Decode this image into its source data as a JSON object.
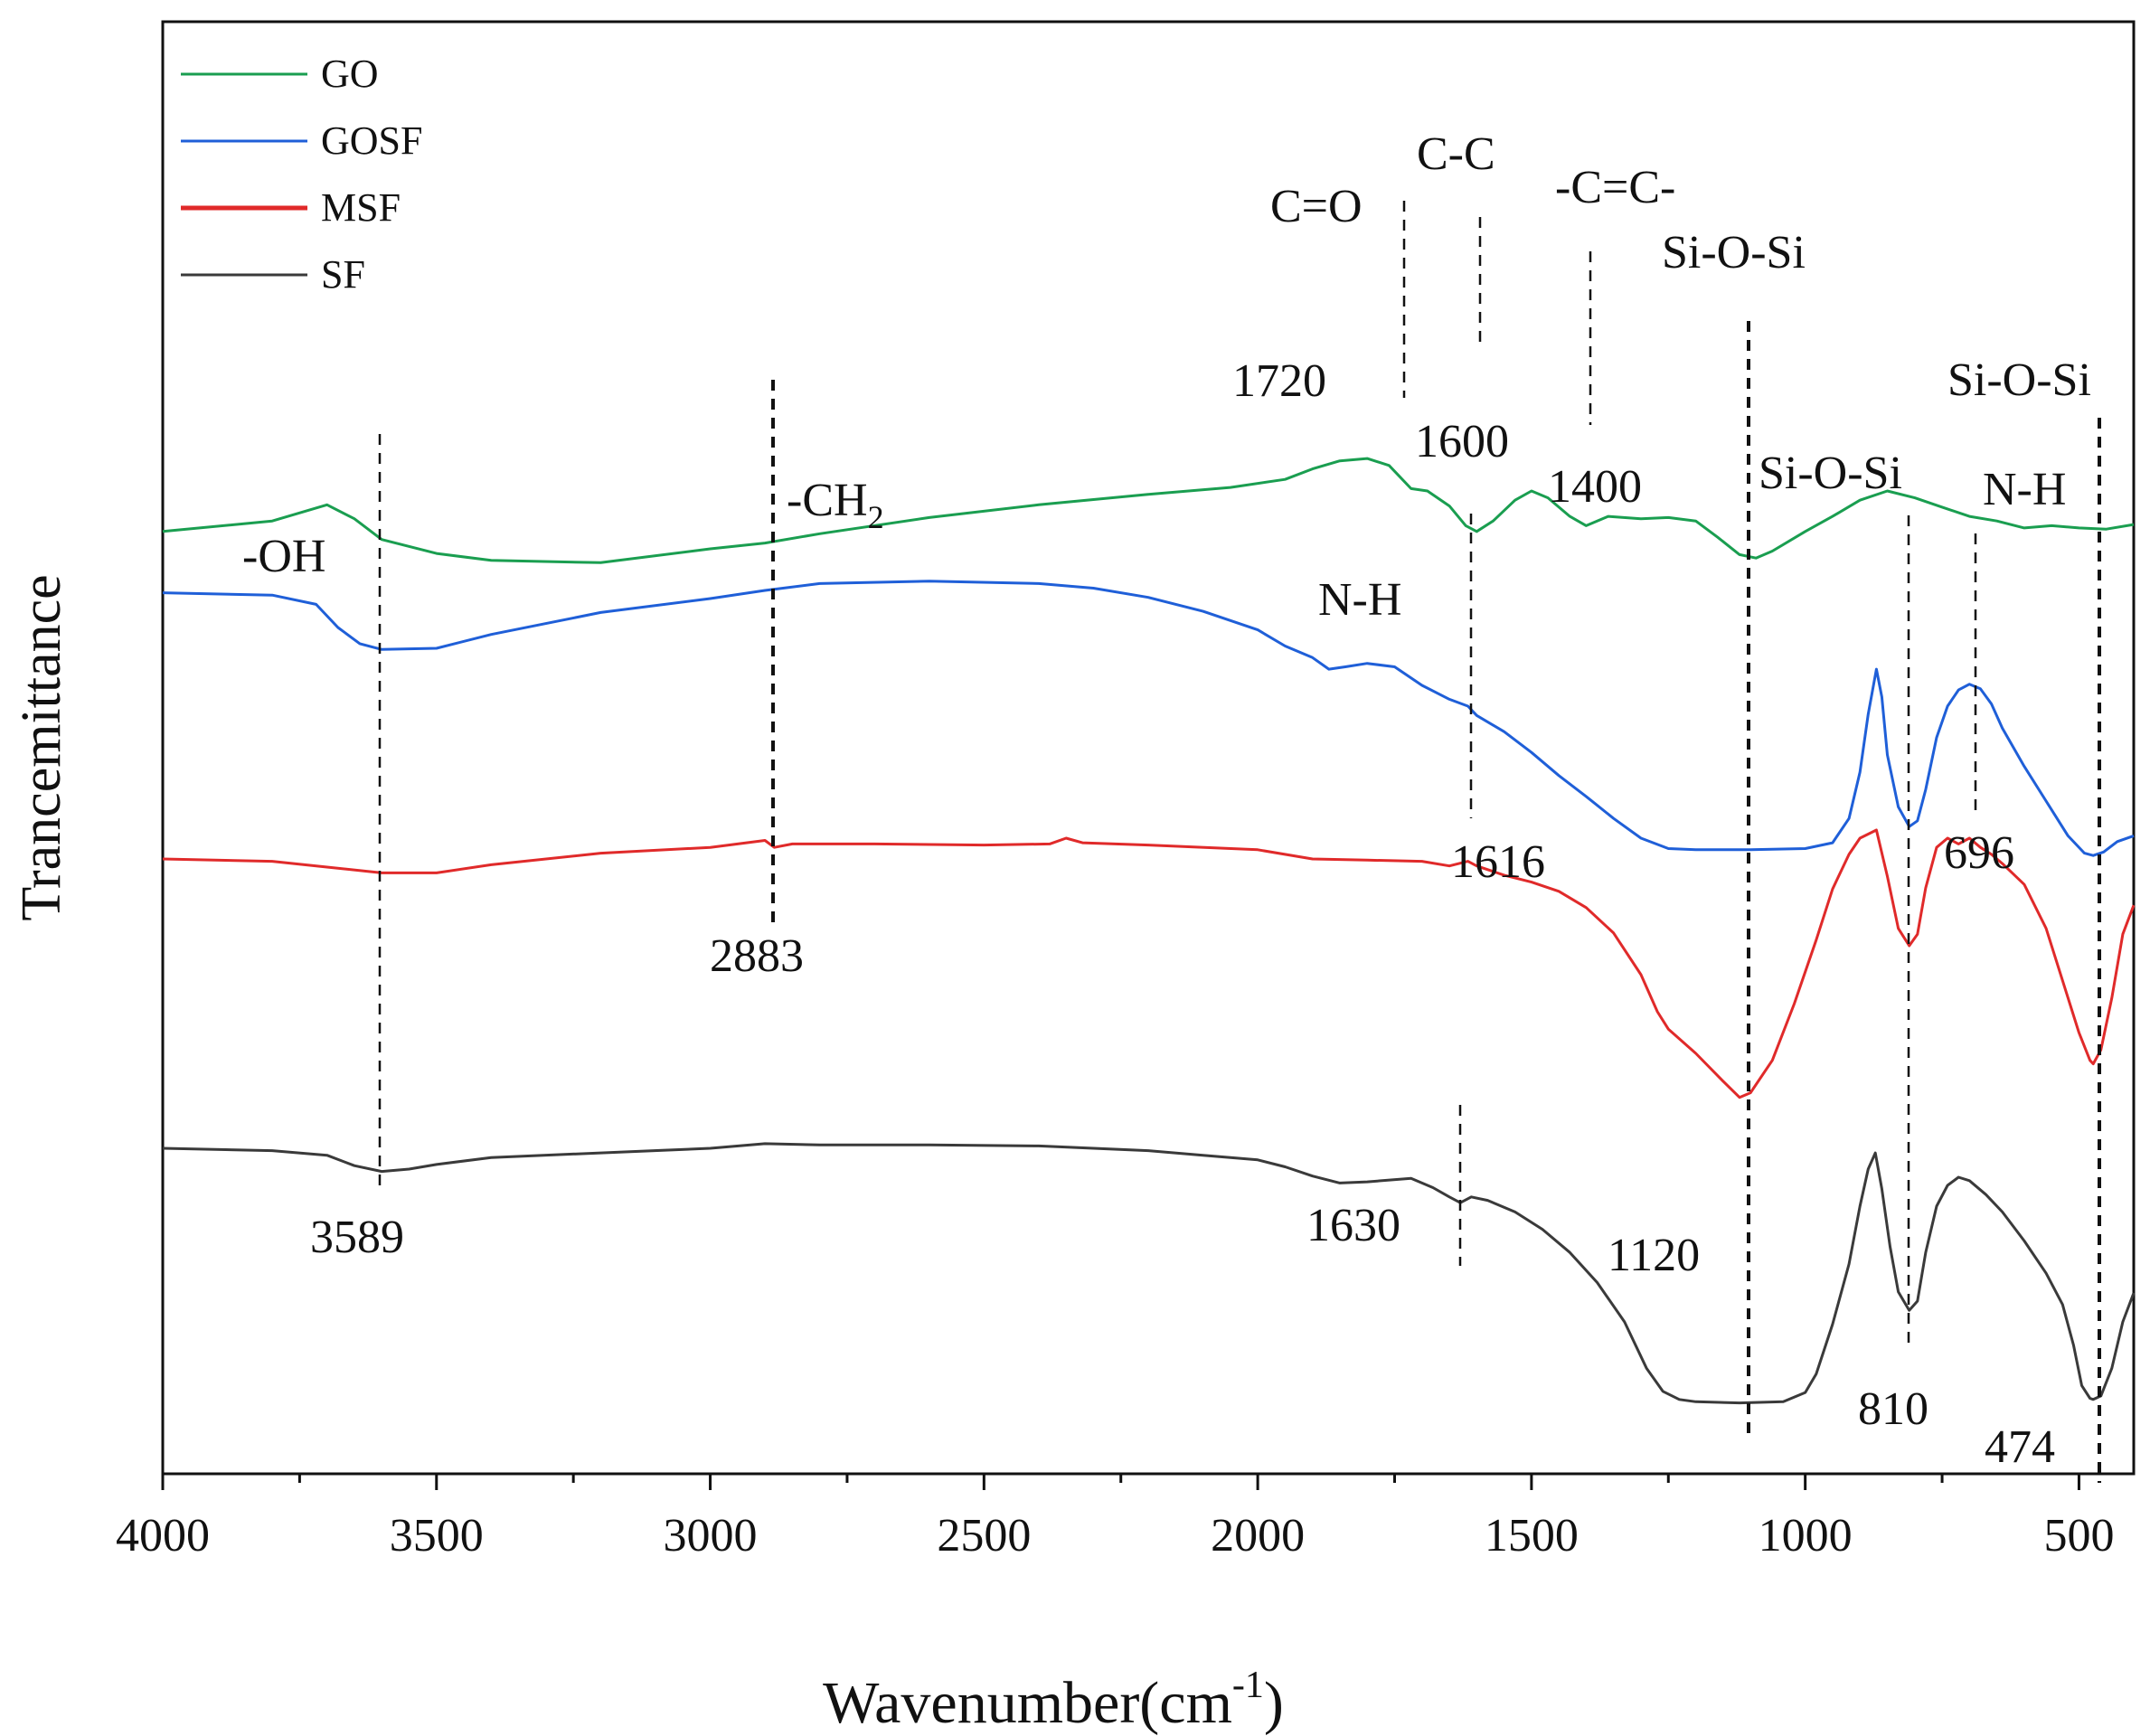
{
  "chart_data": {
    "type": "line",
    "title": "",
    "xlabel": "Wavenumber(cm",
    "xlabel_sup": "-1",
    "xlabel_close": ")",
    "ylabel": "Trancemittance",
    "xlim": [
      4000,
      400
    ],
    "x_ticks": [
      4000,
      3500,
      3000,
      2500,
      2000,
      1500,
      1000,
      500
    ],
    "x_tick_labels": [
      "4000",
      "3500",
      "3000",
      "2500",
      "2000",
      "1500",
      "1000",
      "500"
    ],
    "y_ticks_shown": false,
    "y_range": [
      0,
      100
    ],
    "legend_position": "top-left",
    "series": [
      {
        "name": "GO",
        "color": "#1a9e50",
        "points": [
          [
            4000,
            78.3
          ],
          [
            3800,
            79.2
          ],
          [
            3700,
            80.6
          ],
          [
            3650,
            79.4
          ],
          [
            3600,
            77.6
          ],
          [
            3500,
            76.4
          ],
          [
            3400,
            75.8
          ],
          [
            3200,
            75.6
          ],
          [
            3000,
            76.8
          ],
          [
            2900,
            77.3
          ],
          [
            2800,
            78.1
          ],
          [
            2600,
            79.5
          ],
          [
            2400,
            80.6
          ],
          [
            2200,
            81.5
          ],
          [
            2050,
            82.1
          ],
          [
            1950,
            82.8
          ],
          [
            1900,
            83.7
          ],
          [
            1850,
            84.4
          ],
          [
            1800,
            84.6
          ],
          [
            1760,
            84.0
          ],
          [
            1720,
            82.0
          ],
          [
            1690,
            81.8
          ],
          [
            1650,
            80.5
          ],
          [
            1620,
            78.8
          ],
          [
            1600,
            78.3
          ],
          [
            1570,
            79.2
          ],
          [
            1530,
            81.0
          ],
          [
            1500,
            81.8
          ],
          [
            1470,
            81.2
          ],
          [
            1430,
            79.6
          ],
          [
            1400,
            78.8
          ],
          [
            1360,
            79.6
          ],
          [
            1300,
            79.4
          ],
          [
            1250,
            79.5
          ],
          [
            1200,
            79.2
          ],
          [
            1160,
            77.8
          ],
          [
            1120,
            76.3
          ],
          [
            1090,
            76.0
          ],
          [
            1060,
            76.6
          ],
          [
            1000,
            78.3
          ],
          [
            950,
            79.6
          ],
          [
            900,
            81.0
          ],
          [
            850,
            81.8
          ],
          [
            800,
            81.2
          ],
          [
            750,
            80.4
          ],
          [
            700,
            79.6
          ],
          [
            650,
            79.2
          ],
          [
            600,
            78.6
          ],
          [
            550,
            78.8
          ],
          [
            500,
            78.6
          ],
          [
            450,
            78.5
          ],
          [
            400,
            78.9
          ]
        ]
      },
      {
        "name": "GOSF",
        "color": "#1f5fd8",
        "points": [
          [
            4000,
            73.0
          ],
          [
            3800,
            72.8
          ],
          [
            3720,
            72.0
          ],
          [
            3680,
            70.0
          ],
          [
            3640,
            68.6
          ],
          [
            3600,
            68.1
          ],
          [
            3500,
            68.2
          ],
          [
            3400,
            69.4
          ],
          [
            3200,
            71.3
          ],
          [
            3000,
            72.5
          ],
          [
            2900,
            73.2
          ],
          [
            2800,
            73.8
          ],
          [
            2600,
            74.0
          ],
          [
            2400,
            73.8
          ],
          [
            2300,
            73.4
          ],
          [
            2200,
            72.6
          ],
          [
            2100,
            71.4
          ],
          [
            2000,
            69.8
          ],
          [
            1950,
            68.4
          ],
          [
            1900,
            67.4
          ],
          [
            1870,
            66.4
          ],
          [
            1840,
            66.6
          ],
          [
            1800,
            66.9
          ],
          [
            1750,
            66.6
          ],
          [
            1700,
            65.0
          ],
          [
            1650,
            63.8
          ],
          [
            1616,
            63.2
          ],
          [
            1600,
            62.4
          ],
          [
            1550,
            61.0
          ],
          [
            1500,
            59.2
          ],
          [
            1450,
            57.2
          ],
          [
            1400,
            55.4
          ],
          [
            1350,
            53.5
          ],
          [
            1300,
            51.8
          ],
          [
            1250,
            50.9
          ],
          [
            1200,
            50.8
          ],
          [
            1100,
            50.8
          ],
          [
            1000,
            50.9
          ],
          [
            950,
            51.4
          ],
          [
            920,
            53.5
          ],
          [
            900,
            57.5
          ],
          [
            885,
            62.5
          ],
          [
            870,
            66.4
          ],
          [
            860,
            64.0
          ],
          [
            850,
            59.0
          ],
          [
            830,
            54.5
          ],
          [
            810,
            52.8
          ],
          [
            795,
            53.3
          ],
          [
            780,
            56.0
          ],
          [
            760,
            60.5
          ],
          [
            740,
            63.2
          ],
          [
            720,
            64.6
          ],
          [
            700,
            65.1
          ],
          [
            680,
            64.7
          ],
          [
            660,
            63.4
          ],
          [
            640,
            61.3
          ],
          [
            600,
            58.0
          ],
          [
            560,
            55.0
          ],
          [
            520,
            52.0
          ],
          [
            490,
            50.5
          ],
          [
            474,
            50.3
          ],
          [
            455,
            50.6
          ],
          [
            430,
            51.5
          ],
          [
            400,
            52.0
          ]
        ]
      },
      {
        "name": "MSF",
        "color": "#e02a2a",
        "points": [
          [
            4000,
            50.0
          ],
          [
            3800,
            49.8
          ],
          [
            3700,
            49.3
          ],
          [
            3600,
            48.8
          ],
          [
            3500,
            48.8
          ],
          [
            3400,
            49.5
          ],
          [
            3200,
            50.5
          ],
          [
            3000,
            51.0
          ],
          [
            2950,
            51.3
          ],
          [
            2900,
            51.6
          ],
          [
            2883,
            51.0
          ],
          [
            2850,
            51.3
          ],
          [
            2700,
            51.3
          ],
          [
            2500,
            51.2
          ],
          [
            2380,
            51.3
          ],
          [
            2350,
            51.8
          ],
          [
            2320,
            51.4
          ],
          [
            2200,
            51.2
          ],
          [
            2000,
            50.8
          ],
          [
            1900,
            50.0
          ],
          [
            1800,
            49.9
          ],
          [
            1700,
            49.8
          ],
          [
            1650,
            49.4
          ],
          [
            1616,
            49.8
          ],
          [
            1600,
            49.4
          ],
          [
            1550,
            48.6
          ],
          [
            1500,
            48.0
          ],
          [
            1450,
            47.2
          ],
          [
            1400,
            45.8
          ],
          [
            1350,
            43.6
          ],
          [
            1300,
            40.0
          ],
          [
            1270,
            36.8
          ],
          [
            1250,
            35.3
          ],
          [
            1200,
            33.2
          ],
          [
            1150,
            30.8
          ],
          [
            1120,
            29.4
          ],
          [
            1100,
            29.8
          ],
          [
            1060,
            32.6
          ],
          [
            1020,
            37.5
          ],
          [
            980,
            43.0
          ],
          [
            950,
            47.4
          ],
          [
            920,
            50.4
          ],
          [
            900,
            51.8
          ],
          [
            870,
            52.5
          ],
          [
            850,
            48.5
          ],
          [
            830,
            44.0
          ],
          [
            810,
            42.5
          ],
          [
            795,
            43.5
          ],
          [
            780,
            47.5
          ],
          [
            760,
            51.0
          ],
          [
            740,
            51.8
          ],
          [
            720,
            51.3
          ],
          [
            700,
            51.8
          ],
          [
            680,
            51.0
          ],
          [
            660,
            50.4
          ],
          [
            640,
            49.6
          ],
          [
            600,
            47.8
          ],
          [
            560,
            44.0
          ],
          [
            520,
            38.0
          ],
          [
            500,
            35.0
          ],
          [
            480,
            32.6
          ],
          [
            474,
            32.3
          ],
          [
            460,
            33.5
          ],
          [
            440,
            38.0
          ],
          [
            420,
            43.5
          ],
          [
            400,
            46.0
          ]
        ]
      },
      {
        "name": "SF",
        "color": "#3a3a3a",
        "points": [
          [
            4000,
            25.0
          ],
          [
            3800,
            24.8
          ],
          [
            3700,
            24.4
          ],
          [
            3650,
            23.5
          ],
          [
            3600,
            23.0
          ],
          [
            3550,
            23.2
          ],
          [
            3500,
            23.6
          ],
          [
            3400,
            24.2
          ],
          [
            3200,
            24.6
          ],
          [
            3000,
            25.0
          ],
          [
            2900,
            25.4
          ],
          [
            2800,
            25.3
          ],
          [
            2600,
            25.3
          ],
          [
            2400,
            25.2
          ],
          [
            2200,
            24.8
          ],
          [
            2100,
            24.4
          ],
          [
            2000,
            24.0
          ],
          [
            1950,
            23.4
          ],
          [
            1900,
            22.6
          ],
          [
            1850,
            22.0
          ],
          [
            1800,
            22.1
          ],
          [
            1720,
            22.4
          ],
          [
            1680,
            21.6
          ],
          [
            1650,
            20.8
          ],
          [
            1630,
            20.3
          ],
          [
            1610,
            20.8
          ],
          [
            1580,
            20.5
          ],
          [
            1530,
            19.5
          ],
          [
            1480,
            18.0
          ],
          [
            1430,
            16.0
          ],
          [
            1380,
            13.4
          ],
          [
            1330,
            10.0
          ],
          [
            1290,
            6.0
          ],
          [
            1260,
            4.0
          ],
          [
            1230,
            3.3
          ],
          [
            1200,
            3.1
          ],
          [
            1120,
            3.0
          ],
          [
            1040,
            3.1
          ],
          [
            1000,
            3.9
          ],
          [
            980,
            5.5
          ],
          [
            950,
            9.8
          ],
          [
            920,
            15.0
          ],
          [
            900,
            20.0
          ],
          [
            885,
            23.2
          ],
          [
            872,
            24.6
          ],
          [
            860,
            21.5
          ],
          [
            845,
            16.5
          ],
          [
            830,
            12.6
          ],
          [
            810,
            11.0
          ],
          [
            795,
            11.8
          ],
          [
            780,
            16.0
          ],
          [
            760,
            20.0
          ],
          [
            740,
            21.8
          ],
          [
            720,
            22.5
          ],
          [
            700,
            22.2
          ],
          [
            670,
            21.0
          ],
          [
            640,
            19.5
          ],
          [
            600,
            17.0
          ],
          [
            560,
            14.2
          ],
          [
            530,
            11.5
          ],
          [
            510,
            8.0
          ],
          [
            495,
            4.5
          ],
          [
            480,
            3.4
          ],
          [
            474,
            3.3
          ],
          [
            460,
            3.6
          ],
          [
            440,
            6.0
          ],
          [
            420,
            10.0
          ],
          [
            400,
            12.5
          ]
        ]
      }
    ],
    "annotations": {
      "go_c_o": "C=O",
      "go_c_c": "C-C",
      "go_c_eq_c": "-C=C-",
      "go_si_o_si": "Si-O-Si",
      "go_1720": "1720",
      "go_1600": "1600",
      "go_1400": "1400",
      "go_si_o_si_right": "Si-O-Si",
      "gosf_oh": "-OH",
      "gosf_ch2": "-CH",
      "gosf_ch2_sub": "2",
      "gosf_nh": "N-H",
      "gosf_si_o_si": "Si-O-Si",
      "gosf_nh_right": "N-H",
      "msf_1616": "1616",
      "msf_696": "696",
      "msf_2883": "2883",
      "sf_3589": "3589",
      "sf_1630": "1630",
      "sf_1120": "1120",
      "sf_810": "810",
      "sf_474": "474"
    }
  }
}
